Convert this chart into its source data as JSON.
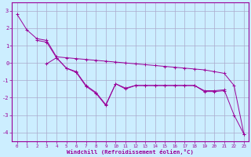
{
  "xlabel": "Windchill (Refroidissement éolien,°C)",
  "bg_color": "#cceeff",
  "line_color": "#990099",
  "grid_color": "#aaaacc",
  "line1_x": [
    0,
    1,
    2,
    3,
    4,
    5,
    6,
    7,
    8,
    9,
    10,
    11,
    12,
    13,
    14,
    15,
    16,
    17,
    18,
    19,
    20,
    21,
    22,
    23
  ],
  "line1_y": [
    2.8,
    1.9,
    1.4,
    1.3,
    0.35,
    0.3,
    0.25,
    0.2,
    0.15,
    0.1,
    0.05,
    0.0,
    -0.05,
    -0.1,
    -0.15,
    -0.2,
    -0.25,
    -0.3,
    -0.35,
    -0.4,
    -0.5,
    -0.6,
    -1.3,
    -4.1
  ],
  "line2_x": [
    2,
    3,
    4,
    5,
    6,
    7,
    8,
    9,
    10,
    11,
    12,
    13,
    14,
    15,
    16,
    17,
    18,
    19,
    20,
    21,
    22,
    23
  ],
  "line2_y": [
    1.3,
    1.2,
    0.3,
    -0.3,
    -0.5,
    -1.3,
    -1.7,
    -2.4,
    -1.2,
    -1.45,
    -1.3,
    -1.3,
    -1.3,
    -1.3,
    -1.3,
    -1.3,
    -1.3,
    -1.6,
    -1.6,
    -1.55,
    -3.0,
    -4.1
  ],
  "line3_x": [
    3,
    4,
    5,
    6,
    7,
    8,
    9,
    10,
    11,
    12,
    13,
    14,
    15,
    16,
    17,
    18,
    19,
    20,
    21
  ],
  "line3_y": [
    -0.05,
    0.3,
    -0.3,
    -0.55,
    -1.35,
    -1.75,
    -2.45,
    -1.2,
    -1.5,
    -1.3,
    -1.3,
    -1.3,
    -1.3,
    -1.3,
    -1.3,
    -1.3,
    -1.65,
    -1.65,
    -1.6
  ],
  "xlim": [
    -0.5,
    23.5
  ],
  "ylim": [
    -4.5,
    3.5
  ],
  "xticks": [
    0,
    1,
    2,
    3,
    4,
    5,
    6,
    7,
    8,
    9,
    10,
    11,
    12,
    13,
    14,
    15,
    16,
    17,
    18,
    19,
    20,
    21,
    22,
    23
  ],
  "yticks": [
    -4,
    -3,
    -2,
    -1,
    0,
    1,
    2,
    3
  ]
}
